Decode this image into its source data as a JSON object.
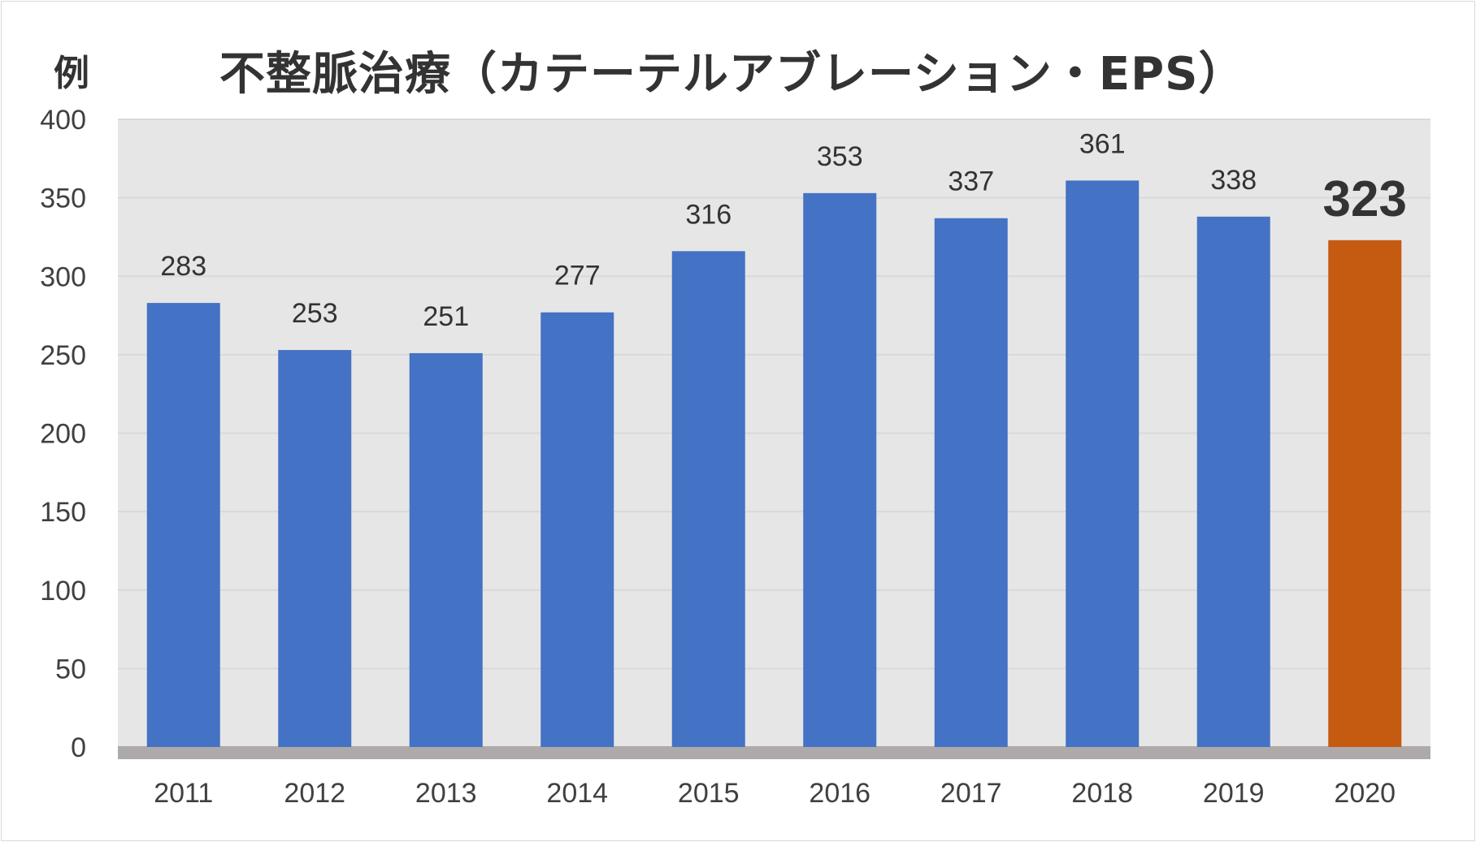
{
  "chart_data": {
    "type": "bar",
    "title": "不整脈治療（カテーテルアブレーション・EPS）",
    "ylabel": "例",
    "xlabel": "",
    "categories": [
      "2011",
      "2012",
      "2013",
      "2014",
      "2015",
      "2016",
      "2017",
      "2018",
      "2019",
      "2020"
    ],
    "values": [
      283,
      253,
      251,
      277,
      316,
      353,
      337,
      361,
      338,
      323
    ],
    "ylim": [
      0,
      400
    ],
    "yticks": [
      0,
      50,
      100,
      150,
      200,
      250,
      300,
      350,
      400
    ],
    "grid": true,
    "legend": "none",
    "highlight_category": "2020",
    "colors": {
      "bar": "#4472c4",
      "highlight": "#c55a11",
      "plot_background": "#e7e6e6",
      "baseline": "#aeaaaa",
      "grid": "#d9d9d9"
    }
  }
}
